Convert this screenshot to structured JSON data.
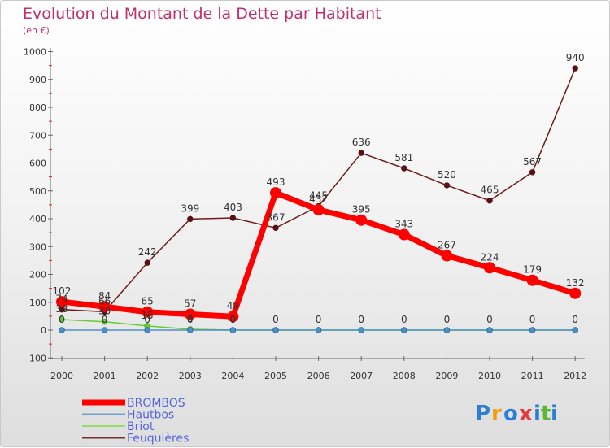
{
  "chart_data": {
    "type": "line",
    "title": "Evolution du Montant de la Dette par Habitant",
    "subtitle": "(en €)",
    "xlabel": "",
    "ylabel": "",
    "categories": [
      "2000",
      "2001",
      "2002",
      "2003",
      "2004",
      "2005",
      "2006",
      "2007",
      "2008",
      "2009",
      "2010",
      "2011",
      "2012"
    ],
    "y_ticks": [
      "-100",
      "0",
      "100",
      "200",
      "300",
      "400",
      "500",
      "600",
      "700",
      "800",
      "900",
      "1000"
    ],
    "ylim": [
      -100,
      1000
    ],
    "grid": false,
    "legend_position": "bottom-left",
    "series": [
      {
        "name": "Feuquières",
        "color": "#6b1b1b",
        "values": [
          74,
          66,
          242,
          399,
          403,
          367,
          445,
          636,
          581,
          520,
          465,
          567,
          940
        ],
        "labels": [
          "74",
          "66",
          "242",
          "399",
          "403",
          "367",
          "445",
          "636",
          "581",
          "520",
          "465",
          "567",
          "940"
        ]
      },
      {
        "name": "Briot",
        "color": "#66cc33",
        "values": [
          38,
          30,
          15,
          3,
          0,
          0,
          0,
          0,
          0,
          0,
          0,
          0,
          0
        ],
        "labels": [
          "38",
          "30",
          "15",
          "3",
          "0",
          "",
          "",
          "",
          "",
          "",
          "",
          "",
          ""
        ]
      },
      {
        "name": "Hautbos",
        "color": "#4d90c8",
        "values": [
          0,
          0,
          0,
          0,
          0,
          0,
          0,
          0,
          0,
          0,
          0,
          0,
          0
        ],
        "labels": [
          "0",
          "0",
          "0",
          "0",
          "0",
          "",
          "",
          "",
          "",
          "",
          "",
          "",
          ""
        ]
      },
      {
        "name": "BROMBOS",
        "color": "#ff0000",
        "values": [
          102,
          84,
          65,
          57,
          49,
          493,
          432,
          395,
          343,
          267,
          224,
          179,
          132
        ],
        "labels": [
          "102",
          "84",
          "65",
          "57",
          "49",
          "493",
          "432",
          "395",
          "343",
          "267",
          "224",
          "179",
          "132"
        ],
        "zero_labels": [
          "",
          "",
          "",
          "",
          "",
          "0",
          "0",
          "0",
          "0",
          "0",
          "0",
          "0",
          "0"
        ]
      }
    ]
  },
  "legend": {
    "items": [
      {
        "name": "BROMBOS",
        "color": "#ff0000"
      },
      {
        "name": "Hautbos",
        "color": "#6fa0d0"
      },
      {
        "name": "Briot",
        "color": "#99dd66"
      },
      {
        "name": "Feuquières",
        "color": "#7a3030"
      }
    ]
  },
  "logo": {
    "text": "Proxiti",
    "letters": [
      "P",
      "r",
      "o",
      "x",
      "i",
      "t",
      "i"
    ],
    "colors": [
      "#2d7fd6",
      "#f39c12",
      "#2d7fd6",
      "#e23b3b",
      "#2d7fd6",
      "#5cb82e",
      "#2d7fd6"
    ]
  }
}
